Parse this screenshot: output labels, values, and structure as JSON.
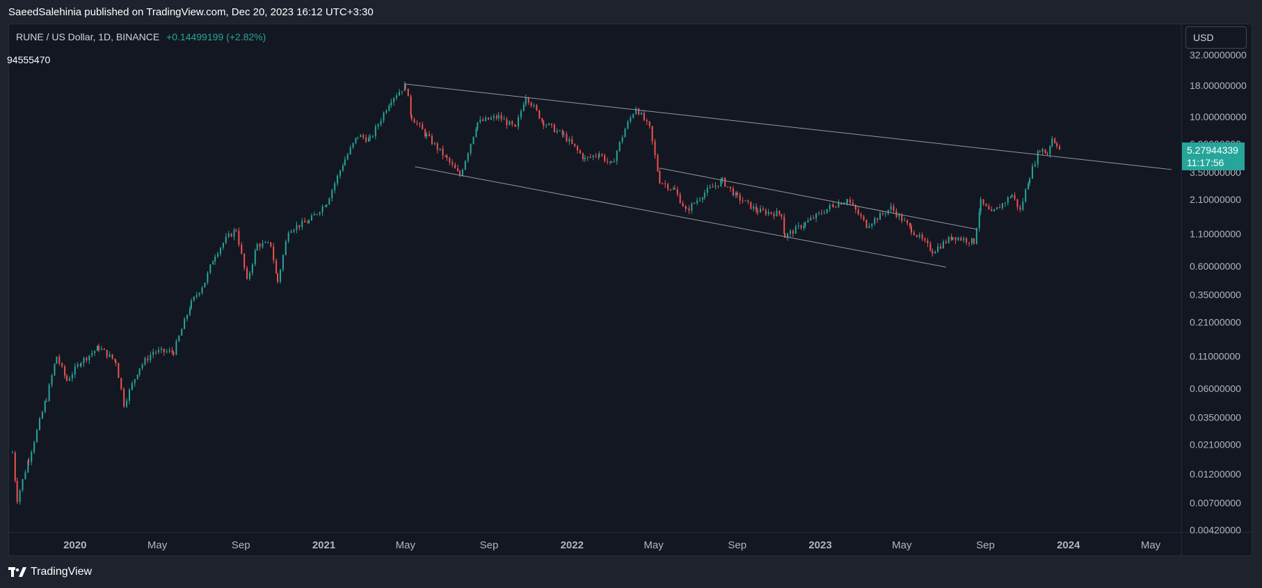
{
  "header": {
    "published": "SaeedSalehinia published on TradingView.com, Dec 20, 2023 16:12 UTC+3:30"
  },
  "legend": {
    "symbol": "RUNE / US Dollar, 1D, BINANCE",
    "change": "+0.14499199 (+2.82%)"
  },
  "volume_value": "94555470",
  "currency": "USD",
  "price_label": {
    "price": "5.27944339",
    "countdown": "11:17:56"
  },
  "footer": {
    "brand": "TradingView"
  },
  "colors": {
    "up": "#26a69a",
    "down": "#ef5350",
    "background": "#131722",
    "trendline": "#9598a1"
  },
  "chart_data": {
    "type": "line",
    "scale": "log",
    "ylim": [
      0.0038,
      36
    ],
    "xlim": [
      "2019-09-25",
      "2024-06-15"
    ],
    "y_ticks": [
      {
        "value": 32,
        "label": "32.00000000"
      },
      {
        "value": 18,
        "label": "18.00000000"
      },
      {
        "value": 10,
        "label": "10.00000000"
      },
      {
        "value": 6,
        "label": "6.00000000"
      },
      {
        "value": 3.5,
        "label": "3.50000000"
      },
      {
        "value": 2.1,
        "label": "2.10000000"
      },
      {
        "value": 1.1,
        "label": "1.10000000"
      },
      {
        "value": 0.6,
        "label": "0.60000000"
      },
      {
        "value": 0.35,
        "label": "0.35000000"
      },
      {
        "value": 0.21,
        "label": "0.21000000"
      },
      {
        "value": 0.11,
        "label": "0.11000000"
      },
      {
        "value": 0.06,
        "label": "0.06000000"
      },
      {
        "value": 0.035,
        "label": "0.03500000"
      },
      {
        "value": 0.021,
        "label": "0.02100000"
      },
      {
        "value": 0.012,
        "label": "0.01200000"
      },
      {
        "value": 0.007,
        "label": "0.00700000"
      },
      {
        "value": 0.0042,
        "label": "0.00420000"
      }
    ],
    "x_ticks": [
      {
        "date": "2020-01-01",
        "label": "2020",
        "bold": true
      },
      {
        "date": "2020-05-01",
        "label": "May"
      },
      {
        "date": "2020-09-01",
        "label": "Sep"
      },
      {
        "date": "2021-01-01",
        "label": "2021",
        "bold": true
      },
      {
        "date": "2021-05-01",
        "label": "May"
      },
      {
        "date": "2021-09-01",
        "label": "Sep"
      },
      {
        "date": "2022-01-01",
        "label": "2022",
        "bold": true
      },
      {
        "date": "2022-05-01",
        "label": "May"
      },
      {
        "date": "2022-09-01",
        "label": "Sep"
      },
      {
        "date": "2023-01-01",
        "label": "2023",
        "bold": true
      },
      {
        "date": "2023-05-01",
        "label": "May"
      },
      {
        "date": "2023-09-01",
        "label": "Sep"
      },
      {
        "date": "2024-01-01",
        "label": "2024",
        "bold": true
      },
      {
        "date": "2024-05-01",
        "label": "May"
      }
    ],
    "series": [
      {
        "points": [
          [
            "2019-10-01",
            0.018
          ],
          [
            "2019-10-08",
            0.0075
          ],
          [
            "2019-10-25",
            0.016
          ],
          [
            "2019-11-20",
            0.05
          ],
          [
            "2019-12-05",
            0.11
          ],
          [
            "2019-12-20",
            0.07
          ],
          [
            "2020-01-10",
            0.1
          ],
          [
            "2020-02-05",
            0.13
          ],
          [
            "2020-03-01",
            0.1
          ],
          [
            "2020-03-13",
            0.045
          ],
          [
            "2020-04-05",
            0.09
          ],
          [
            "2020-04-25",
            0.12
          ],
          [
            "2020-05-25",
            0.12
          ],
          [
            "2020-06-20",
            0.3
          ],
          [
            "2020-07-10",
            0.45
          ],
          [
            "2020-07-25",
            0.75
          ],
          [
            "2020-08-10",
            1.0
          ],
          [
            "2020-08-25",
            1.2
          ],
          [
            "2020-09-10",
            0.45
          ],
          [
            "2020-09-25",
            0.9
          ],
          [
            "2020-10-15",
            0.9
          ],
          [
            "2020-10-25",
            0.45
          ],
          [
            "2020-11-10",
            1.2
          ],
          [
            "2020-12-10",
            1.4
          ],
          [
            "2021-01-05",
            2.0
          ],
          [
            "2021-02-01",
            4.5
          ],
          [
            "2021-02-20",
            7.0
          ],
          [
            "2021-03-10",
            6.5
          ],
          [
            "2021-04-10",
            14
          ],
          [
            "2021-05-01",
            18
          ],
          [
            "2021-05-10",
            10
          ],
          [
            "2021-06-01",
            7
          ],
          [
            "2021-07-01",
            4.5
          ],
          [
            "2021-07-20",
            3.3
          ],
          [
            "2021-08-15",
            9
          ],
          [
            "2021-09-15",
            10
          ],
          [
            "2021-10-10",
            8
          ],
          [
            "2021-10-25",
            15
          ],
          [
            "2021-11-20",
            9
          ],
          [
            "2021-12-20",
            7
          ],
          [
            "2022-01-20",
            4.5
          ],
          [
            "2022-02-10",
            5
          ],
          [
            "2022-02-28",
            4.0
          ],
          [
            "2022-03-20",
            8
          ],
          [
            "2022-04-05",
            12
          ],
          [
            "2022-04-25",
            8
          ],
          [
            "2022-05-10",
            3.0
          ],
          [
            "2022-06-01",
            2.5
          ],
          [
            "2022-06-18",
            1.7
          ],
          [
            "2022-07-15",
            2.4
          ],
          [
            "2022-08-10",
            3.0
          ],
          [
            "2022-09-01",
            2.2
          ],
          [
            "2022-10-01",
            1.7
          ],
          [
            "2022-11-05",
            1.6
          ],
          [
            "2022-11-10",
            1.05
          ],
          [
            "2022-12-10",
            1.35
          ],
          [
            "2023-01-20",
            1.9
          ],
          [
            "2023-02-10",
            2.1
          ],
          [
            "2023-03-10",
            1.3
          ],
          [
            "2023-04-15",
            1.8
          ],
          [
            "2023-05-15",
            1.2
          ],
          [
            "2023-06-15",
            0.8
          ],
          [
            "2023-07-15",
            1.05
          ],
          [
            "2023-08-15",
            0.95
          ],
          [
            "2023-08-25",
            2.0
          ],
          [
            "2023-09-10",
            1.6
          ],
          [
            "2023-10-10",
            2.3
          ],
          [
            "2023-10-22",
            1.7
          ],
          [
            "2023-11-05",
            3.3
          ],
          [
            "2023-11-20",
            5.5
          ],
          [
            "2023-12-01",
            5.0
          ],
          [
            "2023-12-08",
            6.7
          ],
          [
            "2023-12-15",
            6.0
          ],
          [
            "2023-12-20",
            5.28
          ]
        ]
      }
    ],
    "trendlines": [
      {
        "from": [
          "2021-05-01",
          18.5
        ],
        "to": [
          "2024-06-01",
          3.7
        ]
      },
      {
        "from": [
          "2021-05-15",
          3.9
        ],
        "to": [
          "2023-07-05",
          0.59
        ]
      },
      {
        "from": [
          "2022-05-10",
          3.8
        ],
        "to": [
          "2023-08-20",
          1.2
        ]
      }
    ]
  }
}
